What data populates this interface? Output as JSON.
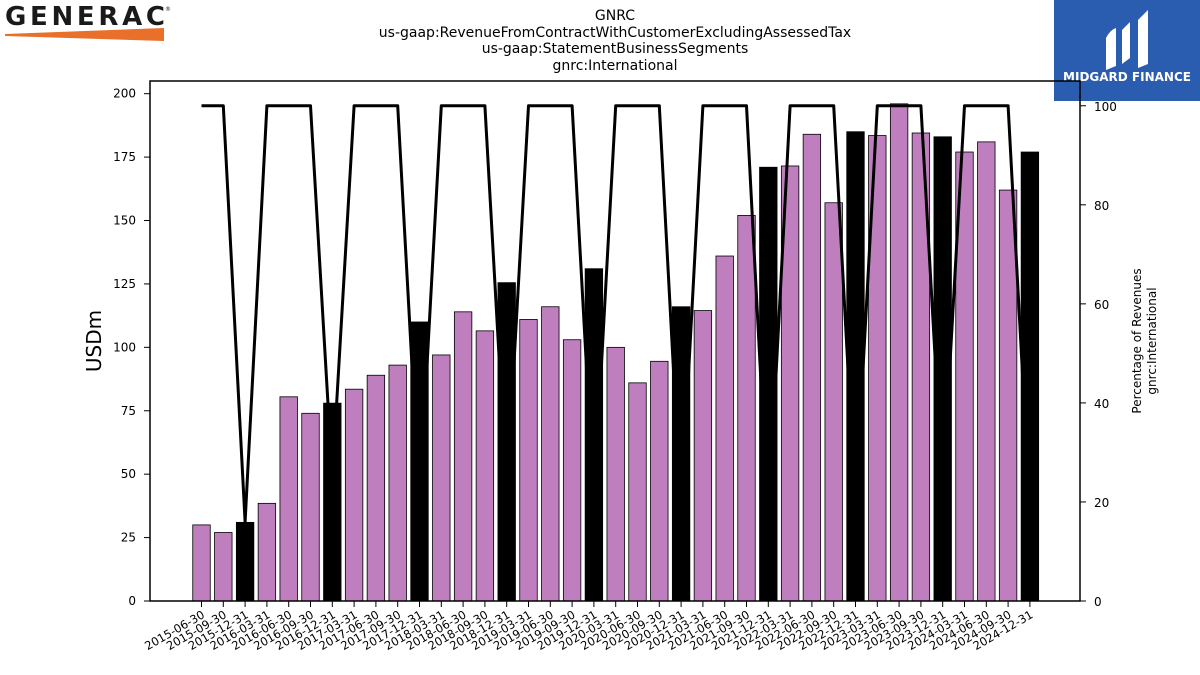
{
  "brand": {
    "left_logo_text": "GENERAC",
    "right_logo_text": "MIDGARD FINANCE",
    "right_logo_color": "#2a5cb0",
    "left_logo_accent": "#e8702a"
  },
  "chart_data": {
    "type": "bar",
    "title_lines": [
      "GNRC",
      "us-gaap:RevenueFromContractWithCustomerExcludingAssessedTax",
      "us-gaap:StatementBusinessSegments",
      "gnrc:International"
    ],
    "ylabel": "USDm",
    "y2label_lines": [
      "Percentage of Revenues",
      "gnrc:International"
    ],
    "ylim": [
      0,
      205
    ],
    "y2lim": [
      0,
      105
    ],
    "yticks": [
      0,
      25,
      50,
      75,
      100,
      125,
      150,
      175,
      200
    ],
    "y2ticks": [
      0,
      20,
      40,
      60,
      80,
      100
    ],
    "grid": false,
    "colors": {
      "quarterly": "#bf7fbf",
      "annual": "#000000",
      "line": "#000000"
    },
    "categories": [
      "2015-06-30",
      "2015-09-30",
      "2015-12-31",
      "2016-03-31",
      "2016-06-30",
      "2016-09-30",
      "2016-12-31",
      "2017-03-31",
      "2017-06-30",
      "2017-09-30",
      "2017-12-31",
      "2018-03-31",
      "2018-06-30",
      "2018-09-30",
      "2018-12-31",
      "2019-03-31",
      "2019-06-30",
      "2019-09-30",
      "2019-12-31",
      "2020-03-31",
      "2020-06-30",
      "2020-09-30",
      "2020-12-31",
      "2021-03-31",
      "2021-06-30",
      "2021-09-30",
      "2021-12-31",
      "2022-03-31",
      "2022-06-30",
      "2022-09-30",
      "2022-12-31",
      "2023-03-31",
      "2023-06-30",
      "2023-09-30",
      "2023-12-31",
      "2024-03-31",
      "2024-06-30",
      "2024-09-30",
      "2024-12-31"
    ],
    "values": [
      30,
      27,
      31,
      38.5,
      80.5,
      74,
      78,
      83.5,
      89,
      93,
      110,
      97,
      114,
      106.5,
      125.5,
      111,
      116,
      103,
      131,
      100,
      86,
      94.5,
      116,
      114.5,
      136,
      152,
      171,
      171.5,
      184,
      157,
      185,
      183.5,
      196,
      184.5,
      183,
      177,
      181,
      162,
      177
    ],
    "annual_flags": [
      false,
      false,
      true,
      false,
      false,
      false,
      true,
      false,
      false,
      false,
      true,
      false,
      false,
      false,
      true,
      false,
      false,
      false,
      true,
      false,
      false,
      false,
      true,
      false,
      false,
      false,
      true,
      false,
      false,
      false,
      true,
      false,
      false,
      false,
      true,
      false,
      false,
      false,
      true
    ],
    "percentages": [
      100,
      100,
      16,
      100,
      100,
      100,
      25,
      100,
      100,
      100,
      20,
      100,
      100,
      100,
      22,
      100,
      100,
      100,
      20,
      100,
      100,
      100,
      18,
      100,
      100,
      100,
      16,
      100,
      100,
      100,
      19,
      100,
      100,
      100,
      22,
      100,
      100,
      100,
      18
    ]
  }
}
